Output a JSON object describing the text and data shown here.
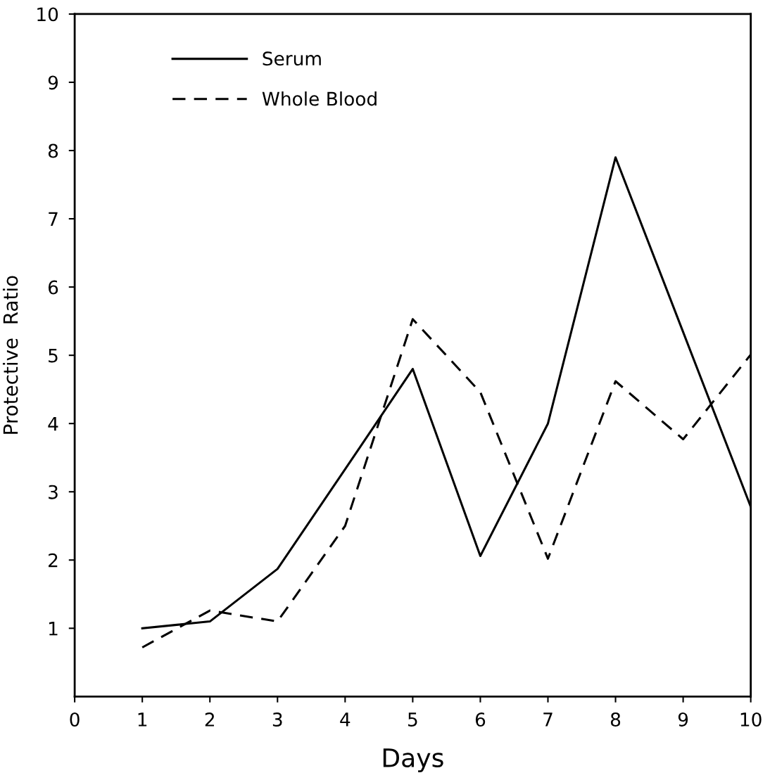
{
  "chart_data": {
    "type": "line",
    "xlabel": "Days",
    "ylabel": "Protective  Ratio",
    "x": [
      1,
      2,
      3,
      4,
      5,
      6,
      7,
      8,
      9,
      10
    ],
    "series": [
      {
        "name": "Serum",
        "color": "#000000",
        "line_style": "solid",
        "values": [
          1.0,
          1.1,
          1.87,
          3.33,
          4.8,
          2.06,
          4.0,
          7.9,
          5.34,
          2.78
        ]
      },
      {
        "name": "Whole Blood",
        "color": "#000000",
        "line_style": "dashed",
        "values": [
          0.72,
          1.26,
          1.1,
          2.5,
          5.53,
          4.46,
          2.02,
          4.62,
          3.77,
          5.01
        ]
      }
    ],
    "xlim": [
      0,
      10
    ],
    "ylim": [
      0,
      10
    ],
    "xticks": [
      0,
      1,
      2,
      3,
      4,
      5,
      6,
      7,
      8,
      9,
      10
    ],
    "yticks": [
      1,
      2,
      3,
      4,
      5,
      6,
      7,
      8,
      9,
      10
    ],
    "grid": false,
    "legend": "top left",
    "marker": "none"
  }
}
